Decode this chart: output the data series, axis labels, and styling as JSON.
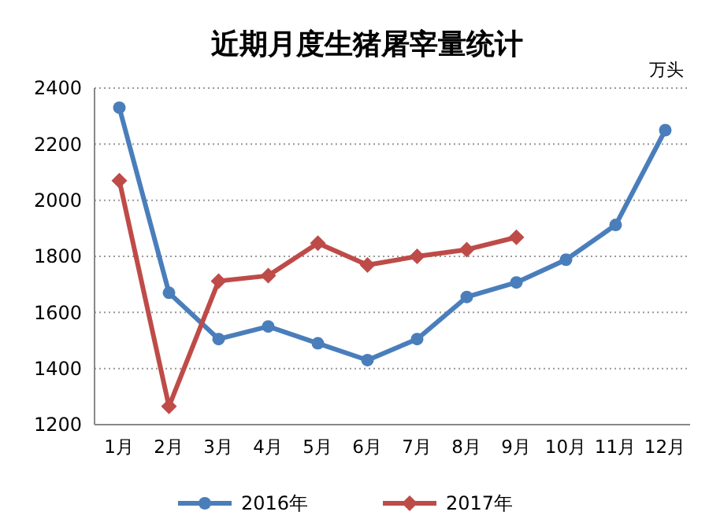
{
  "chart_data": {
    "type": "line",
    "title": "近期月度生猪屠宰量统计",
    "ylabel": "万头",
    "categories": [
      "1月",
      "2月",
      "3月",
      "4月",
      "5月",
      "6月",
      "7月",
      "8月",
      "9月",
      "10月",
      "11月",
      "12月"
    ],
    "series": [
      {
        "name": "2016年",
        "color": "#4a7ebb",
        "values": [
          2330,
          1670,
          1505,
          1550,
          1490,
          1430,
          1505,
          1655,
          1707,
          1788,
          1912,
          2250
        ],
        "marker": "circle"
      },
      {
        "name": "2017年",
        "color": "#be4b48",
        "values": [
          2070,
          1265,
          1712,
          1731,
          1847,
          1769,
          1800,
          1824,
          1868,
          null,
          null,
          null
        ],
        "marker": "diamond"
      }
    ],
    "ylim": [
      1200,
      2400
    ],
    "yticks": [
      1200,
      1400,
      1600,
      1800,
      2000,
      2200,
      2400
    ],
    "grid": "y",
    "legend": "bottom"
  }
}
